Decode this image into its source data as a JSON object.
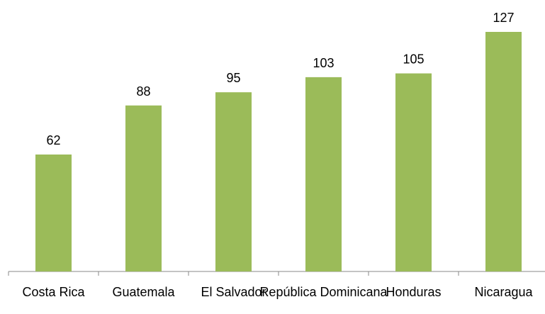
{
  "chart_data": {
    "type": "bar",
    "categories": [
      "Costa Rica",
      "Guatemala",
      "El Salvador",
      "República Dominicana",
      "Honduras",
      "Nicaragua"
    ],
    "values": [
      62,
      88,
      95,
      103,
      105,
      127
    ],
    "color": "#9bbb59"
  }
}
